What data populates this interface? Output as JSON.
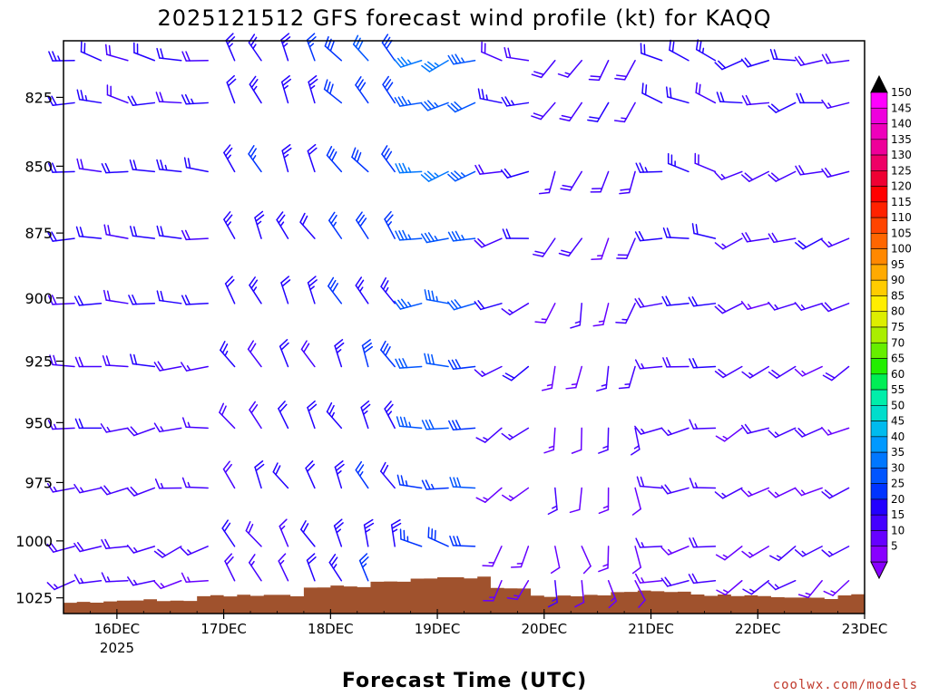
{
  "chart_data": {
    "type": "wind-barb-profile",
    "title": "2025121512 GFS forecast wind profile (kt) for KAQQ",
    "xlabel": "Forecast Time (UTC)",
    "x_ticks": [
      "16DEC",
      "17DEC",
      "18DEC",
      "19DEC",
      "20DEC",
      "21DEC",
      "22DEC",
      "23DEC"
    ],
    "x_year_label": "2025",
    "xlim_days": [
      "15DEC 12Z",
      "23DEC 00Z"
    ],
    "y_ticks": [
      825,
      850,
      875,
      900,
      925,
      950,
      975,
      1000,
      1025
    ],
    "ylim_hpa": [
      805,
      1032
    ],
    "y_scale": "log-pressure",
    "time_step_hours": 6,
    "levels_hpa": [
      810,
      825,
      850,
      875,
      900,
      925,
      950,
      975,
      1000,
      1015
    ],
    "colorbar": {
      "values": [
        5,
        10,
        15,
        20,
        25,
        30,
        35,
        40,
        45,
        50,
        55,
        60,
        65,
        70,
        75,
        80,
        85,
        90,
        95,
        100,
        105,
        110,
        115,
        120,
        125,
        130,
        135,
        140,
        145,
        150
      ],
      "colors": [
        "#8800ff",
        "#6600ff",
        "#4400ff",
        "#2200ff",
        "#0033ff",
        "#0055ff",
        "#0077ff",
        "#0099ff",
        "#00bbee",
        "#00ddcc",
        "#00eeaa",
        "#00ee55",
        "#22ee00",
        "#66ee00",
        "#aaee00",
        "#ddee00",
        "#ffee00",
        "#ffcc00",
        "#ffaa00",
        "#ff8800",
        "#ff6600",
        "#ff4400",
        "#ff2200",
        "#ff0000",
        "#ee0033",
        "#ee0066",
        "#ee0099",
        "#ee00bb",
        "#ee00dd",
        "#ff00ff"
      ]
    },
    "terrain_color": "#a0522d",
    "note": "wind barbs per level and time; speeds ~10-35 kt, strongest aloft on 19DEC"
  },
  "credit": "coolwx.com/models"
}
